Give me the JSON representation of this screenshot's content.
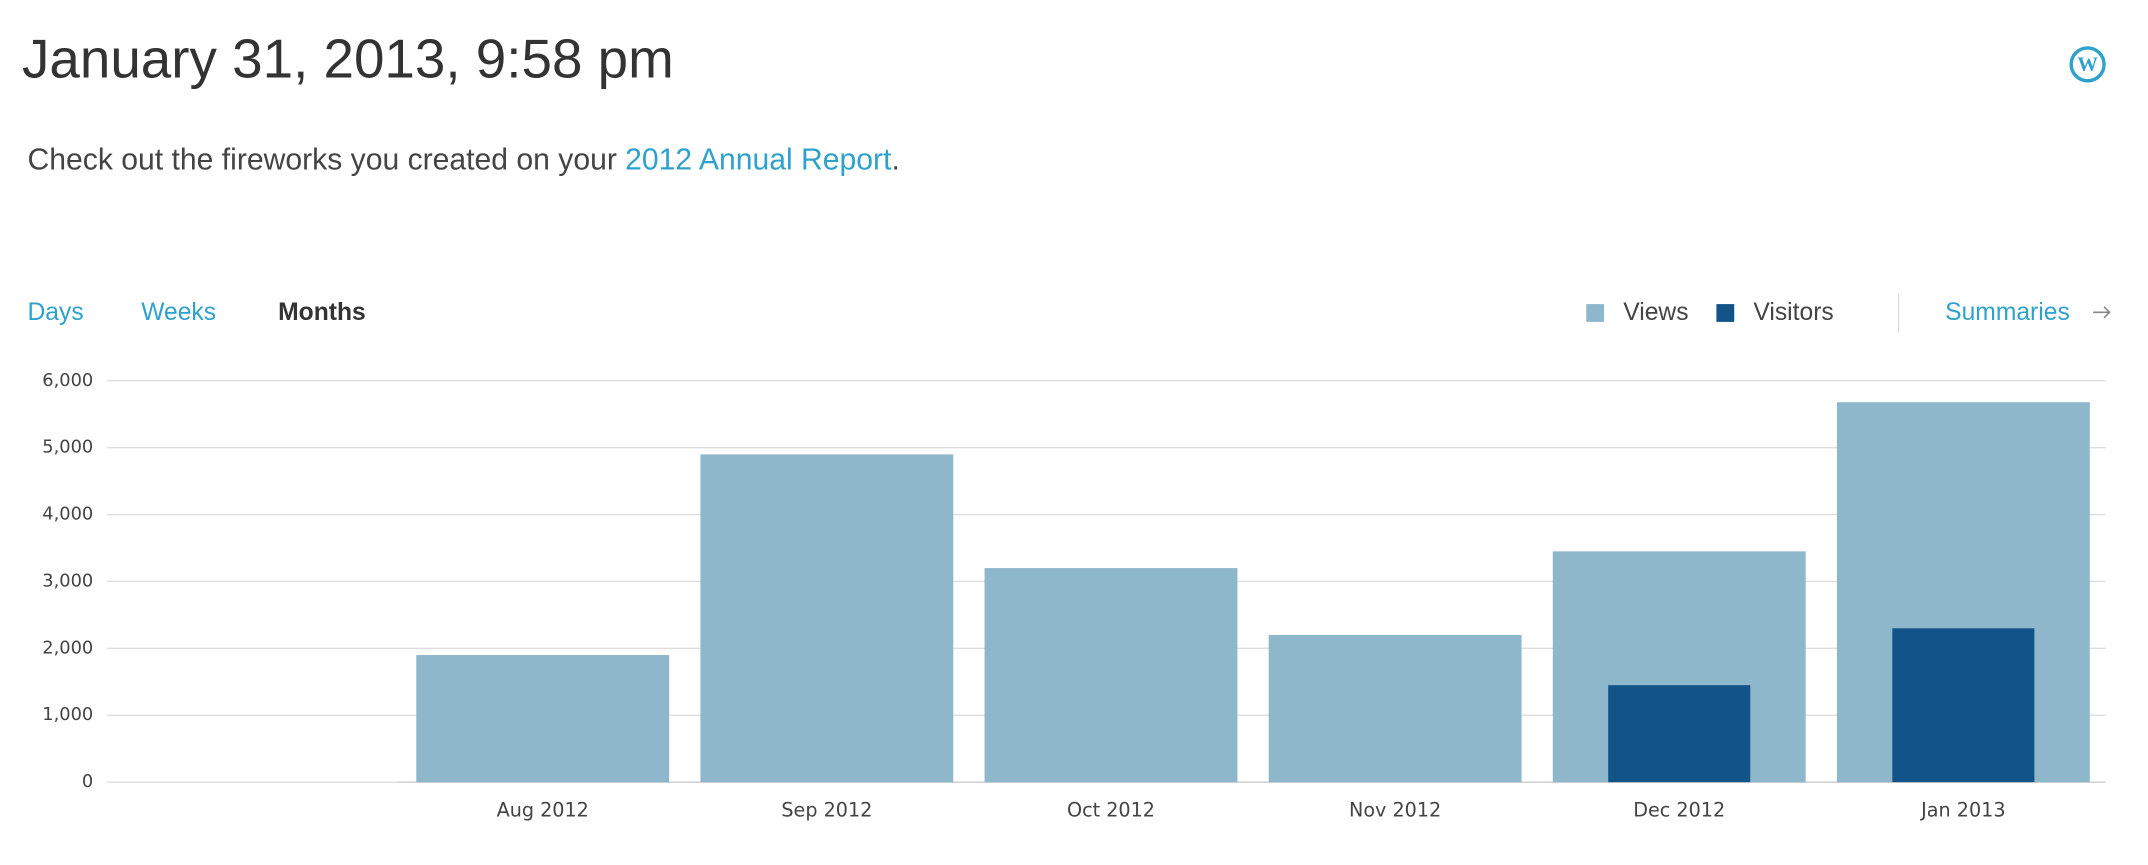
{
  "header": {
    "title": "January 31, 2013, 9:58 pm"
  },
  "intro": {
    "text": "Check out the fireworks you created on your",
    "link": "2012 Annual Report",
    "end": "."
  },
  "tabs": [
    "Days",
    "Weeks",
    "Months"
  ],
  "summaries": "Summaries",
  "chart_data": {
    "type": "bar",
    "categories": [
      null,
      "Aug 2012",
      "Sep 2012",
      "Oct 2012",
      "Nov 2012",
      "Dec 2012",
      "Jan 2013"
    ],
    "series": [
      {
        "name": "Views",
        "color": "#8fb7cb",
        "values": [
          null,
          1900,
          4900,
          3200,
          2200,
          3450,
          5680
        ]
      },
      {
        "name": "Visitors",
        "color": "#135488",
        "values": [
          null,
          null,
          null,
          null,
          null,
          1450,
          2300
        ]
      }
    ],
    "ylim": [
      0,
      6000
    ],
    "yticks": [
      0,
      {
        "value": 1000,
        "label": "1,000"
      },
      {
        "value": 2000,
        "label": "2,000"
      },
      {
        "value": 3000,
        "label": "3,000"
      },
      {
        "value": 4000,
        "label": "4,000"
      },
      {
        "value": 5000,
        "label": "5,000"
      },
      {
        "value": 6000,
        "label": "6,000"
      }
    ],
    "grid": true
  }
}
